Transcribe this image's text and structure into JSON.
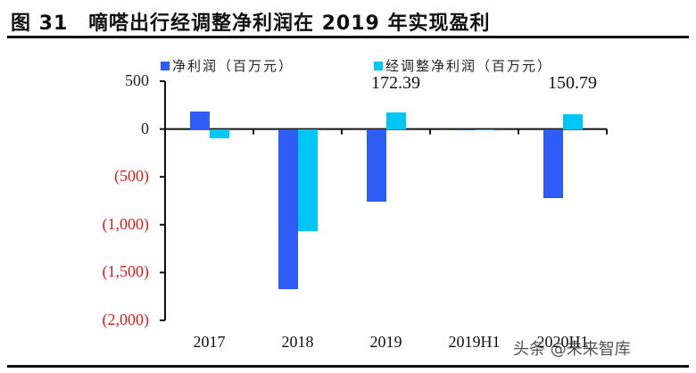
{
  "figure": {
    "number": "图 31",
    "title": "嘀嗒出行经调整净利润在 2019 年实现盈利"
  },
  "legend": [
    {
      "label": "净利润（百万元）",
      "color": "#2f5cf5"
    },
    {
      "label": "经调整净利润（百万元）",
      "color": "#00c6f5"
    }
  ],
  "y_ticks": [
    {
      "value": 500,
      "label": "500",
      "negative": false
    },
    {
      "value": 0,
      "label": "0",
      "negative": false
    },
    {
      "value": -500,
      "label": "(500)",
      "negative": true
    },
    {
      "value": -1000,
      "label": "(1,000)",
      "negative": true
    },
    {
      "value": -1500,
      "label": "(1,500)",
      "negative": true
    },
    {
      "value": -2000,
      "label": "(2,000)",
      "negative": true
    }
  ],
  "watermark": "头条 @未来智库",
  "chart_data": {
    "type": "bar",
    "title": "嘀嗒出行经调整净利润在 2019 年实现盈利",
    "xlabel": "",
    "ylabel": "百万元",
    "ylim": [
      -2000,
      500
    ],
    "grid": false,
    "legend_position": "top",
    "categories": [
      "2017",
      "2018",
      "2019",
      "2019H1",
      "2020H1"
    ],
    "series": [
      {
        "name": "净利润（百万元）",
        "color": "#2f5cf5",
        "values": [
          187,
          -1670,
          -756,
          -10,
          -720
        ]
      },
      {
        "name": "经调整净利润（百万元）",
        "color": "#00c6f5",
        "values": [
          -93,
          -1063,
          172.39,
          -3,
          150.79
        ]
      }
    ],
    "annotations": [
      {
        "category": "2019",
        "series": "经调整净利润（百万元）",
        "text": "172.39"
      },
      {
        "category": "2020H1",
        "series": "经调整净利润（百万元）",
        "text": "150.79"
      }
    ],
    "y_tick_labels": [
      "500",
      "0",
      "(500)",
      "(1,000)",
      "(1,500)",
      "(2,000)"
    ]
  }
}
